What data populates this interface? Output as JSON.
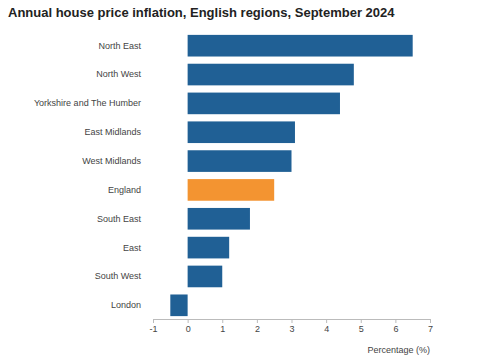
{
  "chart_data": {
    "type": "bar",
    "orientation": "horizontal",
    "title": "Annual house price inflation, English regions, September 2024",
    "x_label": "Percentage (%)",
    "categories": [
      "North East",
      "North West",
      "Yorkshire and The Humber",
      "East Midlands",
      "West Midlands",
      "England",
      "South East",
      "East",
      "South West",
      "London"
    ],
    "values": [
      6.5,
      4.8,
      4.4,
      3.1,
      3.0,
      2.5,
      1.8,
      1.2,
      1.0,
      -0.5
    ],
    "colors": [
      "#206095",
      "#206095",
      "#206095",
      "#206095",
      "#206095",
      "#f39431",
      "#206095",
      "#206095",
      "#206095",
      "#206095"
    ],
    "xlim": [
      -1,
      7
    ],
    "xticks": [
      -1,
      0,
      1,
      2,
      3,
      4,
      5,
      6,
      7
    ],
    "grid": false
  }
}
